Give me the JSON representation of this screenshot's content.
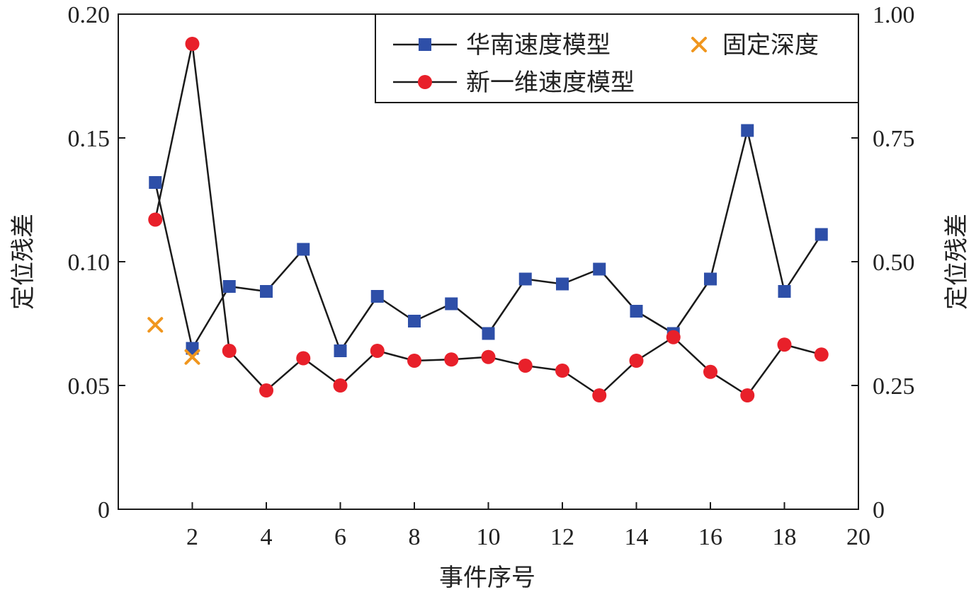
{
  "chart_data": {
    "type": "line",
    "xlabel": "事件序号",
    "ylabel_left": "定位残差",
    "ylabel_right": "定位残差",
    "xlim": [
      0,
      20
    ],
    "ylim_left": [
      0,
      0.2
    ],
    "ylim_right": [
      0,
      1.0
    ],
    "x_ticks": [
      2,
      4,
      6,
      8,
      10,
      12,
      14,
      16,
      18,
      20
    ],
    "x_tick_labels": [
      "2",
      "4",
      "6",
      "8",
      "10",
      "12",
      "14",
      "16",
      "18",
      "20"
    ],
    "y_left_ticks": [
      0,
      0.05,
      0.1,
      0.15,
      0.2
    ],
    "y_left_tick_labels": [
      "0",
      "0.05",
      "0.10",
      "0.15",
      "0.20"
    ],
    "y_right_ticks": [
      0,
      0.25,
      0.5,
      0.75,
      1.0
    ],
    "y_right_tick_labels": [
      "0",
      "0.25",
      "0.50",
      "0.75",
      "1.00"
    ],
    "grid": false,
    "legend_position": "top-right",
    "series": [
      {
        "name": "华南速度模型",
        "axis": "left",
        "marker": "square",
        "color": "#2E4FA8",
        "line_color": "#1a1a1a",
        "x": [
          1,
          2,
          3,
          4,
          5,
          6,
          7,
          8,
          9,
          10,
          11,
          12,
          13,
          14,
          15,
          16,
          17,
          18,
          19
        ],
        "y": [
          0.132,
          0.065,
          0.09,
          0.088,
          0.105,
          0.064,
          0.086,
          0.076,
          0.083,
          0.071,
          0.093,
          0.091,
          0.097,
          0.08,
          0.071,
          0.093,
          0.153,
          0.088,
          0.111
        ]
      },
      {
        "name": "新一维速度模型",
        "axis": "left",
        "marker": "circle",
        "color": "#E8202A",
        "line_color": "#1a1a1a",
        "x": [
          1,
          2,
          3,
          4,
          5,
          6,
          7,
          8,
          9,
          10,
          11,
          12,
          13,
          14,
          15,
          16,
          17,
          18,
          19
        ],
        "y": [
          0.117,
          0.188,
          0.064,
          0.048,
          0.061,
          0.05,
          0.064,
          0.06,
          0.0605,
          0.0615,
          0.058,
          0.056,
          0.046,
          0.06,
          0.0695,
          0.0555,
          0.046,
          0.0665,
          0.0625
        ]
      },
      {
        "name": "固定深度",
        "axis": "left",
        "marker": "x",
        "color": "#F0961E",
        "line": false,
        "x": [
          1,
          2
        ],
        "y": [
          0.0745,
          0.0615
        ]
      }
    ]
  }
}
